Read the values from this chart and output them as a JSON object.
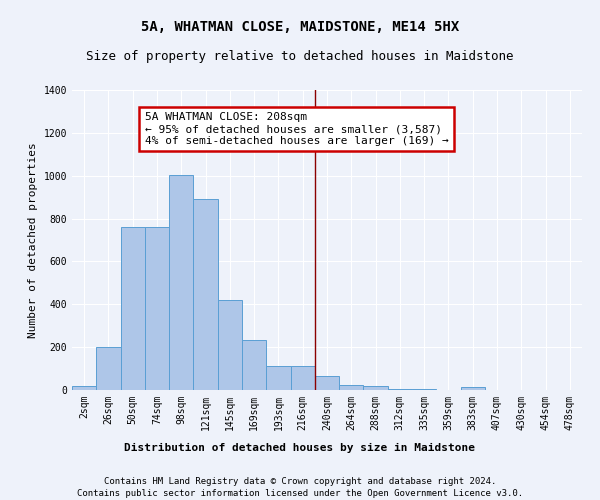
{
  "title": "5A, WHATMAN CLOSE, MAIDSTONE, ME14 5HX",
  "subtitle": "Size of property relative to detached houses in Maidstone",
  "xlabel": "Distribution of detached houses by size in Maidstone",
  "ylabel": "Number of detached properties",
  "categories": [
    "2sqm",
    "26sqm",
    "50sqm",
    "74sqm",
    "98sqm",
    "121sqm",
    "145sqm",
    "169sqm",
    "193sqm",
    "216sqm",
    "240sqm",
    "264sqm",
    "288sqm",
    "312sqm",
    "335sqm",
    "359sqm",
    "383sqm",
    "407sqm",
    "430sqm",
    "454sqm",
    "478sqm"
  ],
  "values": [
    20,
    200,
    760,
    760,
    1005,
    890,
    420,
    235,
    110,
    110,
    65,
    25,
    20,
    5,
    5,
    0,
    15,
    0,
    0,
    0,
    0
  ],
  "bar_color": "#aec6e8",
  "bar_edge_color": "#5a9fd4",
  "vline_color": "#8b0000",
  "vline_pos": 9.5,
  "annotation_text": "5A WHATMAN CLOSE: 208sqm\n← 95% of detached houses are smaller (3,587)\n4% of semi-detached houses are larger (169) →",
  "annotation_box_color": "#ffffff",
  "annotation_box_edge_color": "#cc0000",
  "ylim": [
    0,
    1400
  ],
  "yticks": [
    0,
    200,
    400,
    600,
    800,
    1000,
    1200,
    1400
  ],
  "bg_color": "#eef2fa",
  "footer1": "Contains HM Land Registry data © Crown copyright and database right 2024.",
  "footer2": "Contains public sector information licensed under the Open Government Licence v3.0.",
  "title_fontsize": 10,
  "subtitle_fontsize": 9,
  "xlabel_fontsize": 8,
  "ylabel_fontsize": 8,
  "tick_fontsize": 7,
  "annotation_fontsize": 8,
  "footer_fontsize": 6.5
}
